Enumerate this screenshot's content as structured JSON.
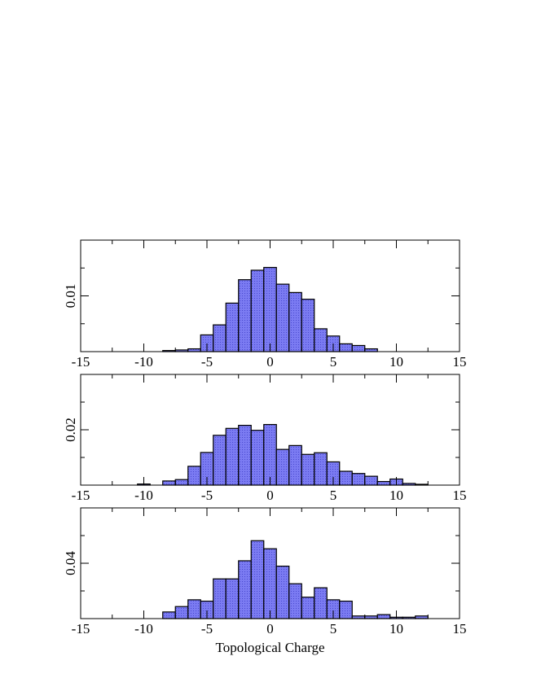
{
  "chart_data": [
    {
      "type": "bar",
      "panel": "top",
      "xlabel": "",
      "ylabel": "0.01",
      "xlim": [
        -15,
        15
      ],
      "ylim": [
        0,
        0.02
      ],
      "xticks": [
        "-15",
        "-10",
        "-5",
        "0",
        "5",
        "10",
        "15"
      ],
      "bin_width": 1,
      "bar_color": "#7b7bf2",
      "bins": [
        {
          "x": -8,
          "y": 0.0002
        },
        {
          "x": -7,
          "y": 0.0003
        },
        {
          "x": -6,
          "y": 0.0005
        },
        {
          "x": -5,
          "y": 0.003
        },
        {
          "x": -4,
          "y": 0.0048
        },
        {
          "x": -3,
          "y": 0.0087
        },
        {
          "x": -2,
          "y": 0.0129
        },
        {
          "x": -1,
          "y": 0.0146
        },
        {
          "x": 0,
          "y": 0.0151
        },
        {
          "x": 1,
          "y": 0.0121
        },
        {
          "x": 2,
          "y": 0.0106
        },
        {
          "x": 3,
          "y": 0.0094
        },
        {
          "x": 4,
          "y": 0.0041
        },
        {
          "x": 5,
          "y": 0.0028
        },
        {
          "x": 6,
          "y": 0.0014
        },
        {
          "x": 7,
          "y": 0.0011
        },
        {
          "x": 8,
          "y": 0.0005
        }
      ]
    },
    {
      "type": "bar",
      "panel": "middle",
      "xlabel": "",
      "ylabel": "0.02",
      "xlim": [
        -15,
        15
      ],
      "ylim": [
        0,
        0.04
      ],
      "xticks": [
        "-15",
        "-10",
        "-5",
        "0",
        "5",
        "10",
        "15"
      ],
      "bin_width": 1,
      "bar_color": "#7b7bf2",
      "bins": [
        {
          "x": -10,
          "y": 0.0004
        },
        {
          "x": -8,
          "y": 0.0015
        },
        {
          "x": -7,
          "y": 0.002
        },
        {
          "x": -6,
          "y": 0.0068
        },
        {
          "x": -5,
          "y": 0.0118
        },
        {
          "x": -4,
          "y": 0.018
        },
        {
          "x": -3,
          "y": 0.0205
        },
        {
          "x": -2,
          "y": 0.0216
        },
        {
          "x": -1,
          "y": 0.0198
        },
        {
          "x": 0,
          "y": 0.0219
        },
        {
          "x": 1,
          "y": 0.0129
        },
        {
          "x": 2,
          "y": 0.0143
        },
        {
          "x": 3,
          "y": 0.0111
        },
        {
          "x": 4,
          "y": 0.0117
        },
        {
          "x": 5,
          "y": 0.0084
        },
        {
          "x": 6,
          "y": 0.005
        },
        {
          "x": 7,
          "y": 0.0042
        },
        {
          "x": 8,
          "y": 0.0032
        },
        {
          "x": 9,
          "y": 0.0013
        },
        {
          "x": 10,
          "y": 0.0022
        },
        {
          "x": 11,
          "y": 0.0006
        },
        {
          "x": 12,
          "y": 0.0003
        }
      ]
    },
    {
      "type": "bar",
      "panel": "bottom",
      "xlabel": "Topological Charge",
      "ylabel": "0.04",
      "xlim": [
        -15,
        15
      ],
      "ylim": [
        0,
        0.08
      ],
      "xticks": [
        "-15",
        "-10",
        "-5",
        "0",
        "5",
        "10",
        "15"
      ],
      "bin_width": 1,
      "bar_color": "#7b7bf2",
      "bins": [
        {
          "x": -8,
          "y": 0.0048
        },
        {
          "x": -7,
          "y": 0.0087
        },
        {
          "x": -6,
          "y": 0.0136
        },
        {
          "x": -5,
          "y": 0.0126
        },
        {
          "x": -4,
          "y": 0.0287
        },
        {
          "x": -3,
          "y": 0.0287
        },
        {
          "x": -2,
          "y": 0.0418
        },
        {
          "x": -1,
          "y": 0.0563
        },
        {
          "x": 0,
          "y": 0.0505
        },
        {
          "x": 1,
          "y": 0.0379
        },
        {
          "x": 2,
          "y": 0.0252
        },
        {
          "x": 3,
          "y": 0.0155
        },
        {
          "x": 4,
          "y": 0.0223
        },
        {
          "x": 5,
          "y": 0.0136
        },
        {
          "x": 6,
          "y": 0.0126
        },
        {
          "x": 7,
          "y": 0.0019
        },
        {
          "x": 8,
          "y": 0.0019
        },
        {
          "x": 9,
          "y": 0.0029
        },
        {
          "x": 10,
          "y": 0.001
        },
        {
          "x": 11,
          "y": 0.001
        },
        {
          "x": 12,
          "y": 0.0019
        }
      ]
    }
  ]
}
